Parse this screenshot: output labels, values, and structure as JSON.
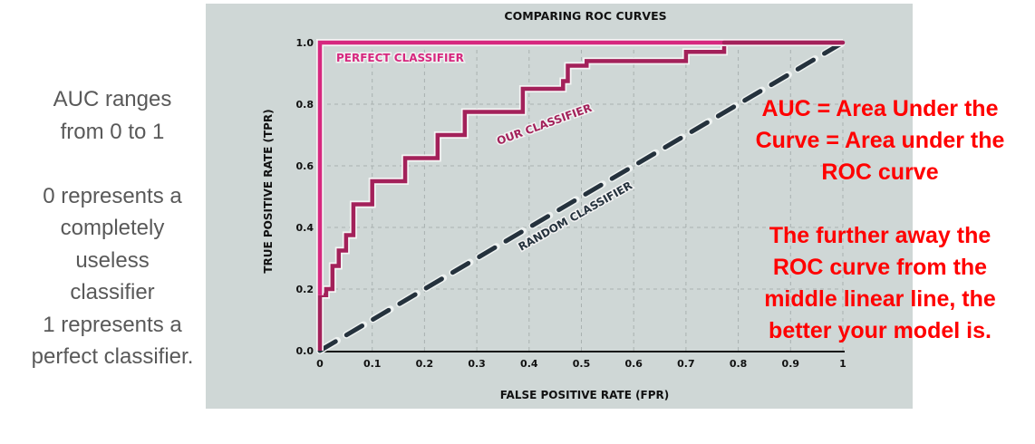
{
  "left_note": {
    "lines": [
      "AUC ranges",
      "from 0 to 1",
      "",
      "0 represents a",
      "completely",
      "useless",
      "classifier",
      "1 represents a",
      "perfect classifier."
    ]
  },
  "right_note": {
    "lines": [
      "AUC = Area Under the",
      "Curve = Area under the",
      "ROC curve",
      "",
      "The further away the",
      "ROC curve from the",
      "middle linear line, the",
      "better your model is."
    ],
    "color": "#ff0000"
  },
  "colors": {
    "panel_bg": "#cfd7d6",
    "perfect": "#d6287f",
    "ours": "#a3215a",
    "random": "#25323d",
    "grid": "#a9b1b0",
    "axis": "#111111"
  },
  "chart_data": {
    "type": "line",
    "title": "COMPARING ROC CURVES",
    "xlabel": "FALSE POSITIVE RATE (FPR)",
    "ylabel": "TRUE POSITIVE RATE (TPR)",
    "xlim": [
      0,
      1
    ],
    "ylim": [
      0,
      1
    ],
    "x_ticks": [
      "0",
      "0.1",
      "0.2",
      "0.3",
      "0.4",
      "0.5",
      "0.6",
      "0.7",
      "0.8",
      "0.9",
      "1"
    ],
    "y_ticks": [
      "0.0",
      "0.2",
      "0.4",
      "0.6",
      "0.8",
      "1.0"
    ],
    "grid": true,
    "series": [
      {
        "name": "PERFECT CLASSIFIER",
        "x": [
          0,
          0,
          1
        ],
        "y": [
          0.18,
          1.0,
          1.0
        ]
      },
      {
        "name": "OUR CLASSIFIER",
        "x": [
          0,
          0,
          0.012,
          0.012,
          0.024,
          0.024,
          0.036,
          0.036,
          0.05,
          0.05,
          0.064,
          0.064,
          0.1,
          0.1,
          0.163,
          0.163,
          0.225,
          0.225,
          0.277,
          0.277,
          0.388,
          0.388,
          0.465,
          0.465,
          0.474,
          0.474,
          0.51,
          0.51,
          0.7,
          0.7,
          0.773,
          0.773,
          1.0
        ],
        "y": [
          0,
          0.18,
          0.18,
          0.2,
          0.2,
          0.275,
          0.275,
          0.325,
          0.325,
          0.375,
          0.375,
          0.475,
          0.475,
          0.55,
          0.55,
          0.625,
          0.625,
          0.7,
          0.7,
          0.775,
          0.775,
          0.85,
          0.85,
          0.875,
          0.875,
          0.925,
          0.925,
          0.94,
          0.94,
          0.97,
          0.97,
          1.0,
          1.0
        ]
      },
      {
        "name": "RANDOM CLASSIFIER",
        "x": [
          0,
          1
        ],
        "y": [
          0,
          1
        ],
        "style": "dashed"
      }
    ]
  }
}
